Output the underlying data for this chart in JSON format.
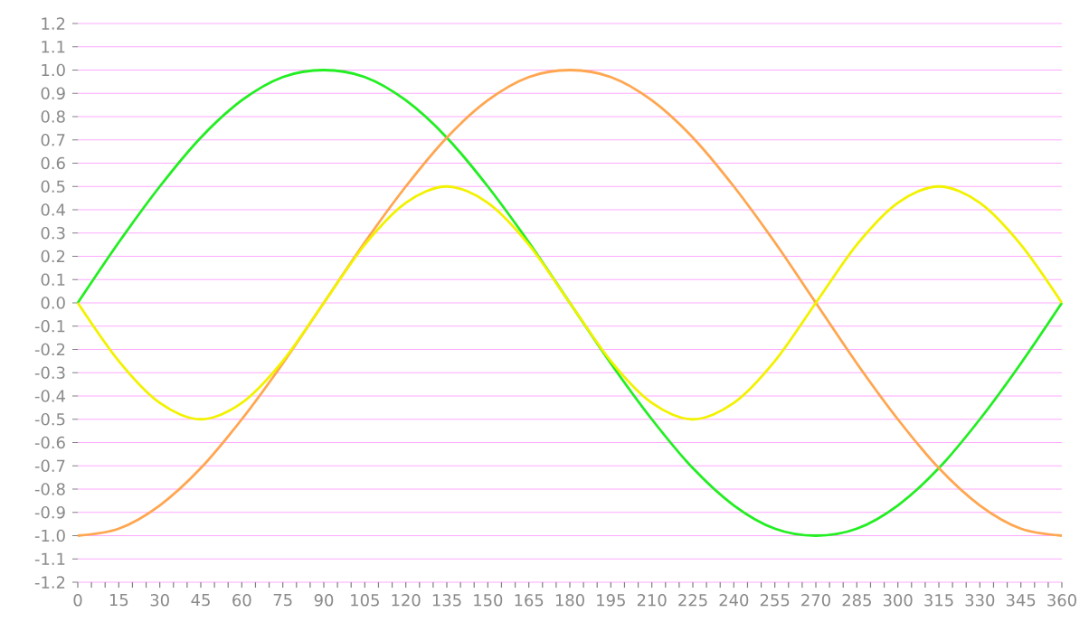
{
  "chart_data": {
    "type": "line",
    "x": [
      0,
      15,
      30,
      45,
      60,
      75,
      90,
      105,
      120,
      135,
      150,
      165,
      180,
      195,
      210,
      225,
      240,
      255,
      270,
      285,
      300,
      315,
      330,
      345,
      360
    ],
    "series": [
      {
        "color": "#22ee22",
        "values": [
          0,
          0.26,
          0.5,
          0.71,
          0.87,
          0.97,
          1,
          0.97,
          0.87,
          0.71,
          0.5,
          0.26,
          0,
          -0.26,
          -0.5,
          -0.71,
          -0.87,
          -0.97,
          -1,
          -0.97,
          -0.87,
          -0.71,
          -0.5,
          -0.26,
          0
        ]
      },
      {
        "color": "#ffa650",
        "values": [
          -1,
          -0.97,
          -0.87,
          -0.71,
          -0.5,
          -0.26,
          0,
          0.26,
          0.5,
          0.71,
          0.87,
          0.97,
          1,
          0.97,
          0.87,
          0.71,
          0.5,
          0.26,
          0,
          -0.26,
          -0.5,
          -0.71,
          -0.87,
          -0.97,
          -1
        ]
      },
      {
        "color": "#f2f200",
        "values": [
          0,
          -0.25,
          -0.43,
          -0.5,
          -0.43,
          -0.25,
          0,
          0.25,
          0.43,
          0.5,
          0.43,
          0.25,
          0,
          -0.25,
          -0.43,
          -0.5,
          -0.43,
          -0.25,
          0,
          0.25,
          0.43,
          0.5,
          0.43,
          0.25,
          0
        ]
      }
    ],
    "xlim": [
      0,
      360
    ],
    "xticks": [
      0,
      {
        "value": 5,
        "label": null
      },
      {
        "value": 10,
        "label": null
      },
      15,
      {
        "value": 20,
        "label": null
      },
      {
        "value": 25,
        "label": null
      },
      30,
      {
        "value": 35,
        "label": null
      },
      {
        "value": 40,
        "label": null
      },
      45,
      {
        "value": 50,
        "label": null
      },
      {
        "value": 55,
        "label": null
      },
      60,
      {
        "value": 65,
        "label": null
      },
      {
        "value": 70,
        "label": null
      },
      75,
      {
        "value": 80,
        "label": null
      },
      {
        "value": 85,
        "label": null
      },
      90,
      {
        "value": 95,
        "label": null
      },
      {
        "value": 100,
        "label": null
      },
      105,
      {
        "value": 110,
        "label": null
      },
      {
        "value": 115,
        "label": null
      },
      120,
      {
        "value": 125,
        "label": null
      },
      {
        "value": 130,
        "label": null
      },
      135,
      {
        "value": 140,
        "label": null
      },
      {
        "value": 145,
        "label": null
      },
      150,
      {
        "value": 155,
        "label": null
      },
      {
        "value": 160,
        "label": null
      },
      165,
      {
        "value": 170,
        "label": null
      },
      {
        "value": 175,
        "label": null
      },
      180,
      {
        "value": 185,
        "label": null
      },
      {
        "value": 190,
        "label": null
      },
      195,
      {
        "value": 200,
        "label": null
      },
      {
        "value": 205,
        "label": null
      },
      210,
      {
        "value": 215,
        "label": null
      },
      {
        "value": 220,
        "label": null
      },
      225,
      {
        "value": 230,
        "label": null
      },
      {
        "value": 235,
        "label": null
      },
      240,
      {
        "value": 245,
        "label": null
      },
      {
        "value": 250,
        "label": null
      },
      255,
      {
        "value": 260,
        "label": null
      },
      {
        "value": 265,
        "label": null
      },
      270,
      {
        "value": 275,
        "label": null
      },
      {
        "value": 280,
        "label": null
      },
      285,
      {
        "value": 290,
        "label": null
      },
      {
        "value": 295,
        "label": null
      },
      300,
      {
        "value": 305,
        "label": null
      },
      {
        "value": 310,
        "label": null
      },
      315,
      {
        "value": 320,
        "label": null
      },
      {
        "value": 325,
        "label": null
      },
      330,
      {
        "value": 335,
        "label": null
      },
      {
        "value": 340,
        "label": null
      },
      345,
      {
        "value": 350,
        "label": null
      },
      {
        "value": 355,
        "label": null
      },
      360
    ],
    "ylim": [
      -1.2,
      1.2
    ],
    "yticks": [
      -1.2,
      -1.1,
      {
        "value": -1,
        "label": "-1.0"
      },
      -0.9,
      -0.8,
      -0.7,
      -0.6,
      -0.5,
      -0.4,
      -0.3,
      -0.2,
      -0.1,
      {
        "value": 0,
        "label": "0.0"
      },
      0.1,
      0.2,
      0.3,
      0.4,
      0.5,
      0.6,
      0.7,
      0.8,
      0.9,
      {
        "value": 1,
        "label": "1.0"
      },
      1.1,
      1.2
    ],
    "grid": "y",
    "marker": "none",
    "line_style": "solid"
  }
}
